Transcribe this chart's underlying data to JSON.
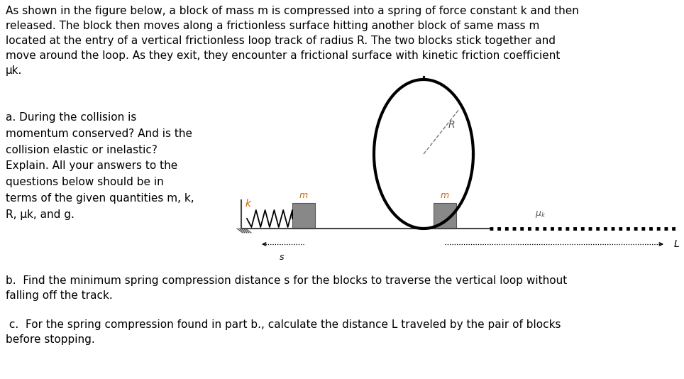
{
  "bg_color": "#ffffff",
  "text_color": "#000000",
  "paragraph_text": "As shown in the figure below, a block of mass m is compressed into a spring of force constant k and then\nreleased. The block then moves along a frictionless surface hitting another block of same mass m\nlocated at the entry of a vertical frictionless loop track of radius R. The two blocks stick together and\nmove around the loop. As they exit, they encounter a frictional surface with kinetic friction coefficient\nμk.",
  "part_a_text": "a. During the collision is\nmomentum conserved? And is the\ncollision elastic or inelastic?\nExplain. All your answers to the\nquestions below should be in\nterms of the given quantities m, k,\nR, μk, and g.",
  "part_b_text": "b.  Find the minimum spring compression distance s for the blocks to traverse the vertical loop without\nfalling off the track.",
  "part_c_text": " c.  For the spring compression found in part b., calculate the distance L traveled by the pair of blocks\nbefore stopping.",
  "font_size_main": 11,
  "font_size_label": 9,
  "font_size_diag": 8
}
